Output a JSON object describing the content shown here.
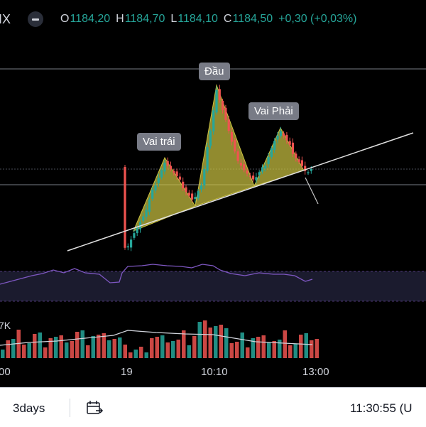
{
  "header": {
    "symbol_fragment": "IX",
    "ohlc": {
      "o_label": "O",
      "o_value": "1184,20",
      "h_label": "H",
      "h_value": "1184,70",
      "l_label": "L",
      "l_value": "1184,10",
      "c_label": "C",
      "c_value": "1184,50",
      "change": "+0,30 (+0,03%)"
    }
  },
  "annotations": {
    "left_shoulder": "Vai trái",
    "head": "Đầu",
    "right_shoulder": "Vai Phải"
  },
  "volume_label": "7K",
  "time_axis": {
    "t0": "00",
    "t1": "19",
    "t2": "10:10",
    "t3": "13:00"
  },
  "bottom_bar": {
    "range": "3days",
    "time": "11:30:55 (U"
  },
  "colors": {
    "up": "#26a69a",
    "down": "#ef5350",
    "pattern_fill": "#c9c141",
    "rsi": "#7e57c2"
  },
  "icons": [
    "hide-indicator-icon",
    "date-range-icon"
  ]
}
